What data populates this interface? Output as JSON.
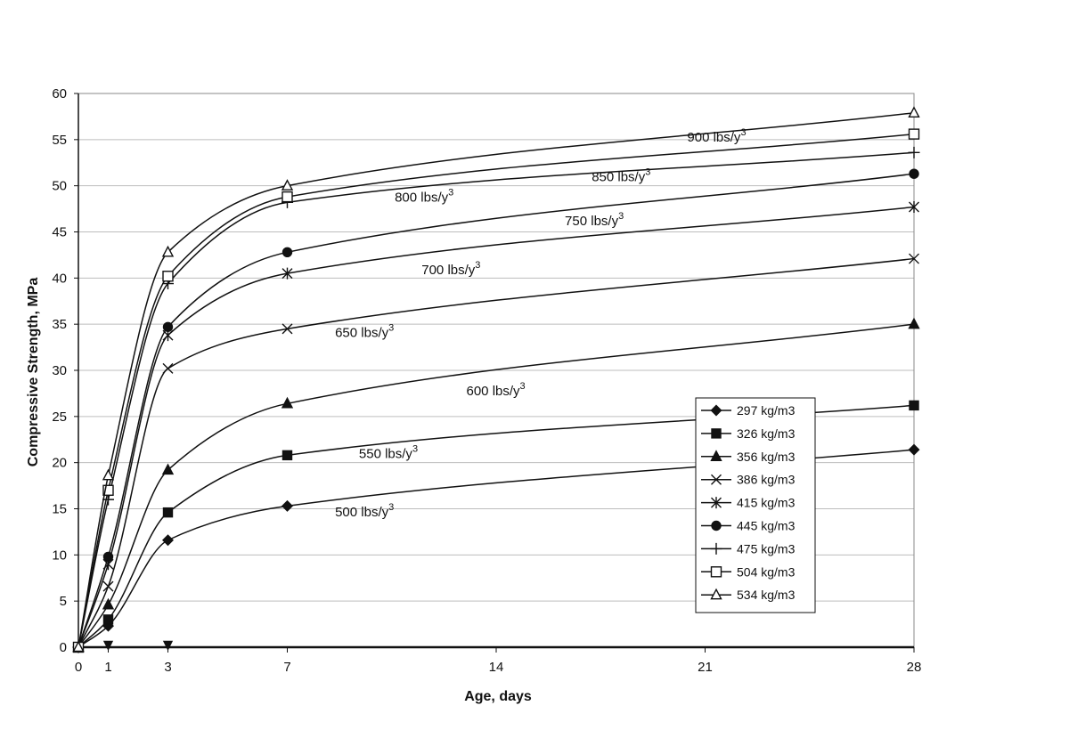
{
  "chart_data": {
    "type": "line",
    "xlabel": "Age, days",
    "ylabel": "Compressive Strength, MPa",
    "xlim": [
      0,
      28
    ],
    "ylim": [
      0,
      60
    ],
    "xticks": [
      0,
      1,
      3,
      7,
      14,
      21,
      28
    ],
    "yticks": [
      0,
      5,
      10,
      15,
      20,
      25,
      30,
      35,
      40,
      45,
      50,
      55,
      60
    ],
    "grid": "horizontal",
    "legend_position": "bottom-right",
    "x": [
      0,
      1,
      3,
      7,
      28
    ],
    "series": [
      {
        "name": "297 kg/m3",
        "marker": "diamond",
        "values": [
          0,
          2.3,
          11.6,
          15.3,
          21.4
        ]
      },
      {
        "name": "326 kg/m3",
        "marker": "square-filled",
        "values": [
          0,
          3.0,
          14.6,
          20.8,
          26.2
        ]
      },
      {
        "name": "356 kg/m3",
        "marker": "triangle-filled",
        "values": [
          0,
          4.6,
          19.2,
          26.4,
          35.0
        ]
      },
      {
        "name": "386 kg/m3",
        "marker": "x",
        "values": [
          0,
          6.6,
          30.2,
          34.5,
          42.1
        ]
      },
      {
        "name": "415 kg/m3",
        "marker": "asterisk",
        "values": [
          0,
          9.0,
          33.8,
          40.5,
          47.7
        ]
      },
      {
        "name": "445 kg/m3",
        "marker": "circle-filled",
        "values": [
          0,
          9.8,
          34.7,
          42.8,
          51.3
        ]
      },
      {
        "name": "475 kg/m3",
        "marker": "plus",
        "values": [
          0,
          16.0,
          39.4,
          48.2,
          53.6
        ]
      },
      {
        "name": "504 kg/m3",
        "marker": "square-open",
        "values": [
          0,
          17.0,
          40.2,
          48.8,
          55.6
        ]
      },
      {
        "name": "534 kg/m3",
        "marker": "triangle-open",
        "values": [
          0,
          18.6,
          42.8,
          50.0,
          57.9
        ]
      }
    ],
    "extra_markers": [
      {
        "marker": "triangle-down",
        "x": 1,
        "y": 0.2
      },
      {
        "marker": "triangle-down",
        "x": 3,
        "y": 0.2
      }
    ],
    "annotations": [
      {
        "label": "500 lbs/y",
        "sup": "3",
        "x": 8.6,
        "y": 14.2
      },
      {
        "label": "550 lbs/y",
        "sup": "3",
        "x": 9.4,
        "y": 20.5
      },
      {
        "label": "600 lbs/y",
        "sup": "3",
        "x": 13.0,
        "y": 27.3
      },
      {
        "label": "650 lbs/y",
        "sup": "3",
        "x": 8.6,
        "y": 33.6
      },
      {
        "label": "700 lbs/y",
        "sup": "3",
        "x": 11.5,
        "y": 40.4
      },
      {
        "label": "750 lbs/y",
        "sup": "3",
        "x": 16.3,
        "y": 45.7
      },
      {
        "label": "800 lbs/y",
        "sup": "3",
        "x": 10.6,
        "y": 48.3
      },
      {
        "label": "850 lbs/y",
        "sup": "3",
        "x": 17.2,
        "y": 50.5
      },
      {
        "label": "900 lbs/y",
        "sup": "3",
        "x": 20.4,
        "y": 54.8
      }
    ]
  }
}
